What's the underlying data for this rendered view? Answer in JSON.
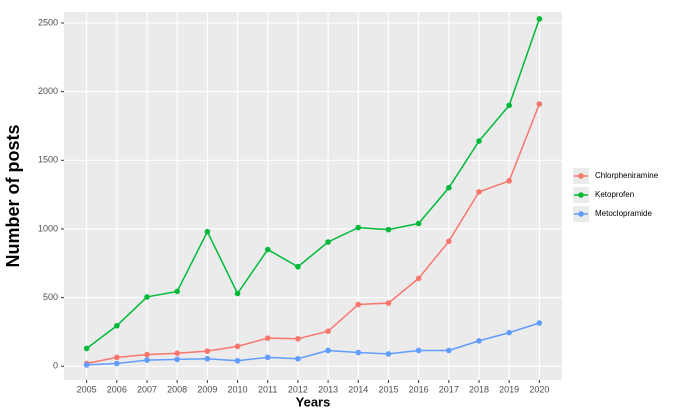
{
  "chart_data": {
    "type": "line",
    "x_label": "Years",
    "y_label": "Number of posts",
    "x": [
      2005,
      2006,
      2007,
      2008,
      2009,
      2010,
      2011,
      2012,
      2013,
      2014,
      2015,
      2016,
      2017,
      2018,
      2019,
      2020
    ],
    "series": [
      {
        "name": "Chlorpheniramine",
        "color": "#f8766d",
        "values": [
          20,
          65,
          85,
          95,
          110,
          145,
          205,
          200,
          255,
          450,
          460,
          640,
          910,
          1270,
          1350,
          1910
        ]
      },
      {
        "name": "Ketoprofen",
        "color": "#00ba38",
        "values": [
          130,
          295,
          505,
          545,
          980,
          530,
          850,
          725,
          905,
          1010,
          995,
          1040,
          1300,
          1640,
          1900,
          2530
        ]
      },
      {
        "name": "Metoclopramide",
        "color": "#619cff",
        "values": [
          10,
          20,
          45,
          50,
          55,
          40,
          65,
          55,
          115,
          100,
          90,
          115,
          115,
          185,
          245,
          315
        ]
      }
    ],
    "xlim": [
      2004.25,
      2020.75
    ],
    "xticks": [
      2005,
      2006,
      2007,
      2008,
      2009,
      2010,
      2011,
      2012,
      2013,
      2014,
      2015,
      2016,
      2017,
      2018,
      2019,
      2020
    ],
    "ylim": [
      -100,
      2580
    ],
    "yticks": [
      0,
      500,
      1000,
      1500,
      2000,
      2500
    ],
    "grid": true,
    "legend": "right"
  }
}
